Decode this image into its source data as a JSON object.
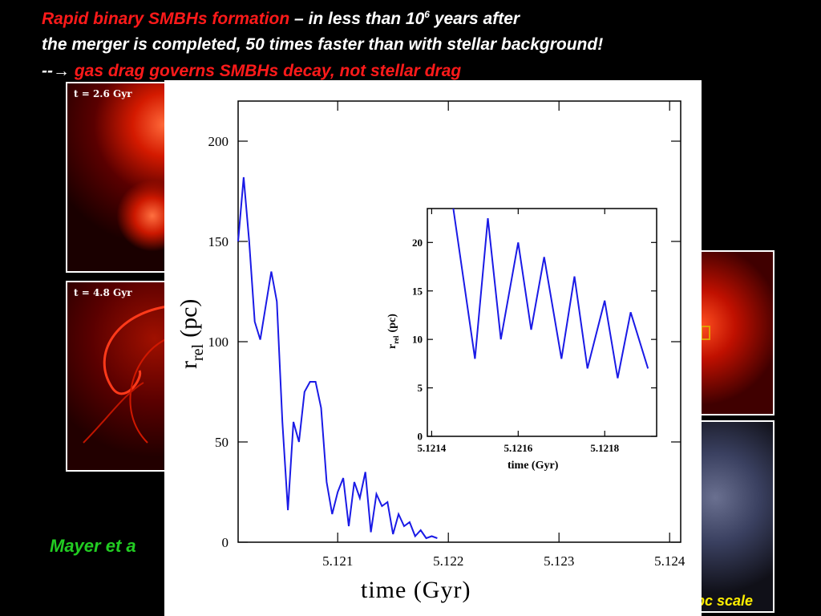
{
  "header": {
    "line1_red": "Rapid binary SMBHs formation",
    "line1_dash": " – ",
    "line1_italic": "in less than 10",
    "line1_sup": "6",
    "line1_tail": " years after",
    "line2": "the merger is completed, 50 times faster than with stellar background!",
    "line3_prefix": "--",
    "line3_arrow": "→",
    "line3_red": " gas drag governs SMBHs decay, not stellar drag"
  },
  "panels": [
    {
      "label": "t = 2.6 Gyr"
    },
    {
      "label": "t = 4.8 Gyr"
    }
  ],
  "credit": "Mayer et  a",
  "scale_text": "pc scale",
  "colors": {
    "curve": "#1a1ae6",
    "header_red": "#ff1a1a",
    "credit_green": "#22cc22",
    "scale_yellow": "#ffee00"
  },
  "chart_data": [
    {
      "type": "line",
      "xlabel": "time (Gyr)",
      "ylabel": "r_rel (pc)",
      "ylabel_main": "r",
      "ylabel_sub": "rel",
      "ylabel_unit": "(pc)",
      "xlim": [
        5.1201,
        5.1241
      ],
      "ylim": [
        0,
        220
      ],
      "xticks": [
        5.121,
        5.122,
        5.123,
        5.124
      ],
      "xtick_labels": [
        "5.121",
        "5.122",
        "5.123",
        "5.124"
      ],
      "yticks": [
        0,
        50,
        100,
        150,
        200
      ],
      "ytick_labels": [
        "0",
        "50",
        "100",
        "150",
        "200"
      ],
      "series": [
        {
          "x": [
            5.1201,
            5.12015,
            5.1202,
            5.12025,
            5.1203,
            5.12035,
            5.1204,
            5.12045,
            5.1205,
            5.12055,
            5.1206,
            5.12065,
            5.1207,
            5.12075,
            5.1208,
            5.12085,
            5.1209,
            5.12095,
            5.121,
            5.12105,
            5.1211,
            5.12115,
            5.1212,
            5.12125,
            5.1213,
            5.12135,
            5.1214,
            5.12145,
            5.1215,
            5.12155,
            5.1216,
            5.12165,
            5.1217,
            5.12175,
            5.1218,
            5.12185,
            5.1219
          ],
          "y": [
            150,
            182,
            150,
            110,
            101,
            118,
            135,
            120,
            60,
            16,
            60,
            50,
            75,
            80,
            80,
            67,
            30,
            14,
            25,
            32,
            8,
            30,
            22,
            35,
            5,
            24,
            18,
            20,
            4,
            14,
            8,
            10,
            3,
            6,
            2,
            3,
            2
          ]
        }
      ]
    },
    {
      "type": "line",
      "xlabel": "time (Gyr)",
      "ylabel": "r_rel (pc)",
      "ylabel_main": "r",
      "ylabel_sub": "rel",
      "ylabel_unit": "(pc)",
      "xlim": [
        5.12139,
        5.12192
      ],
      "ylim": [
        0,
        23.5
      ],
      "xticks": [
        5.1214,
        5.1216,
        5.1218
      ],
      "xtick_labels": [
        "5.1214",
        "5.1216",
        "5.1218"
      ],
      "yticks": [
        0,
        5,
        10,
        15,
        20
      ],
      "ytick_labels": [
        "0",
        "5",
        "10",
        "15",
        "20"
      ],
      "series": [
        {
          "x": [
            5.12145,
            5.1215,
            5.12153,
            5.12156,
            5.1216,
            5.12163,
            5.12166,
            5.1217,
            5.12173,
            5.12176,
            5.1218,
            5.12183,
            5.12186,
            5.1219
          ],
          "y": [
            23.5,
            8,
            22.5,
            10,
            20,
            11,
            18.5,
            8,
            16.5,
            7,
            14,
            6,
            12.8,
            7
          ]
        }
      ]
    }
  ]
}
